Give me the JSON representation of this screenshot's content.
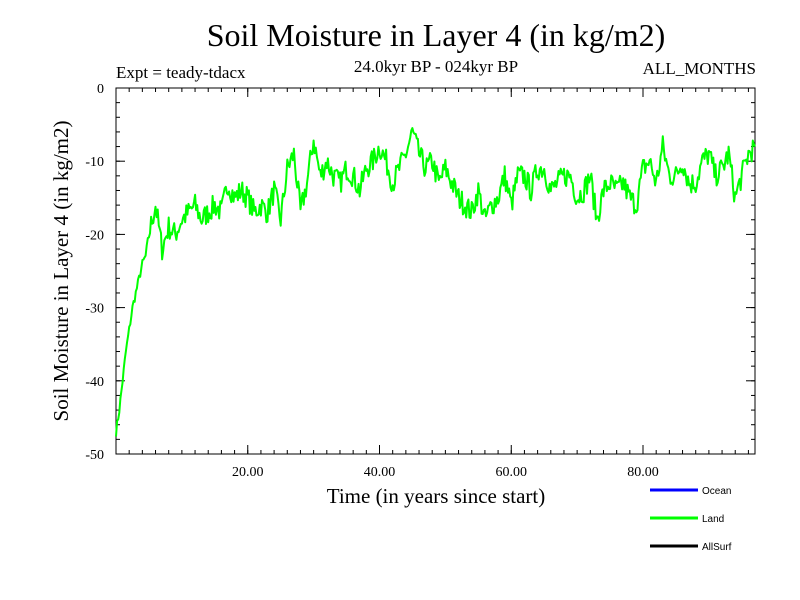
{
  "chart_data": {
    "type": "line",
    "title": "Soil Moisture in Layer 4 (in kg/m2)",
    "subtitle": "24.0kyr BP - 024kyr BP",
    "experiment": "Expt = teady-tdacx",
    "season": "ALL_MONTHS",
    "xlabel": "Time (in years since start)",
    "ylabel": "Soil Moisture in Layer 4 (in kg/m2)",
    "xlim": [
      0,
      97
    ],
    "ylim": [
      -50,
      0
    ],
    "x_ticks": [
      20,
      40,
      60,
      80
    ],
    "x_tick_labels": [
      "20.00",
      "40.00",
      "60.00",
      "80.00"
    ],
    "y_ticks": [
      -50,
      -40,
      -30,
      -20,
      -10,
      0
    ],
    "y_tick_labels": [
      "-50",
      "-40",
      "-30",
      "-20",
      "-10",
      "0"
    ],
    "grid": false,
    "legend_position": "bottom-right",
    "series": [
      {
        "name": "Ocean",
        "color": "#0000ff",
        "x": [],
        "values": []
      },
      {
        "name": "Land",
        "color": "#00ff00",
        "x": [
          0,
          0.5,
          1,
          1.5,
          2,
          2.5,
          3,
          3.5,
          4,
          4.5,
          5,
          6,
          7,
          8,
          9,
          10,
          11,
          12,
          13,
          14,
          15,
          16,
          17,
          18,
          19,
          20,
          21,
          22,
          23,
          24,
          25,
          26,
          27,
          28,
          29,
          30,
          31,
          32,
          33,
          34,
          35,
          36,
          37,
          38,
          39,
          40,
          41,
          42,
          43,
          44,
          45,
          46,
          47,
          48,
          49,
          50,
          51,
          52,
          53,
          54,
          55,
          56,
          57,
          58,
          59,
          60,
          61,
          62,
          63,
          64,
          65,
          66,
          67,
          68,
          69,
          70,
          71,
          72,
          73,
          74,
          75,
          76,
          77,
          78,
          79,
          80,
          81,
          82,
          83,
          84,
          85,
          86,
          87,
          88,
          89,
          90,
          91,
          92,
          93,
          94,
          95,
          96,
          97
        ],
        "values": [
          -47,
          -44,
          -40,
          -36,
          -33,
          -30,
          -28,
          -26,
          -24,
          -23,
          -20,
          -16,
          -22,
          -19,
          -20,
          -18,
          -17,
          -16,
          -18,
          -17,
          -16,
          -17,
          -13,
          -15,
          -14,
          -15,
          -17,
          -16,
          -17,
          -14,
          -18,
          -11,
          -9,
          -17,
          -13,
          -7,
          -12,
          -10,
          -12,
          -13,
          -11,
          -12,
          -14,
          -11,
          -10,
          -8,
          -10,
          -13,
          -11,
          -9,
          -6,
          -9,
          -11,
          -10,
          -13,
          -11,
          -13,
          -15,
          -16,
          -17,
          -14,
          -18,
          -16,
          -15,
          -12,
          -16,
          -12,
          -12,
          -14,
          -11,
          -11,
          -14,
          -13,
          -12,
          -12,
          -15,
          -14,
          -12,
          -18,
          -14,
          -13,
          -14,
          -13,
          -15,
          -16,
          -11,
          -10,
          -13,
          -8,
          -12,
          -12,
          -10,
          -13,
          -13,
          -10,
          -9,
          -12,
          -11,
          -9,
          -15,
          -12,
          -9,
          -8
        ]
      },
      {
        "name": "AllSurf",
        "color": "#000000",
        "x": [],
        "values": []
      }
    ]
  }
}
